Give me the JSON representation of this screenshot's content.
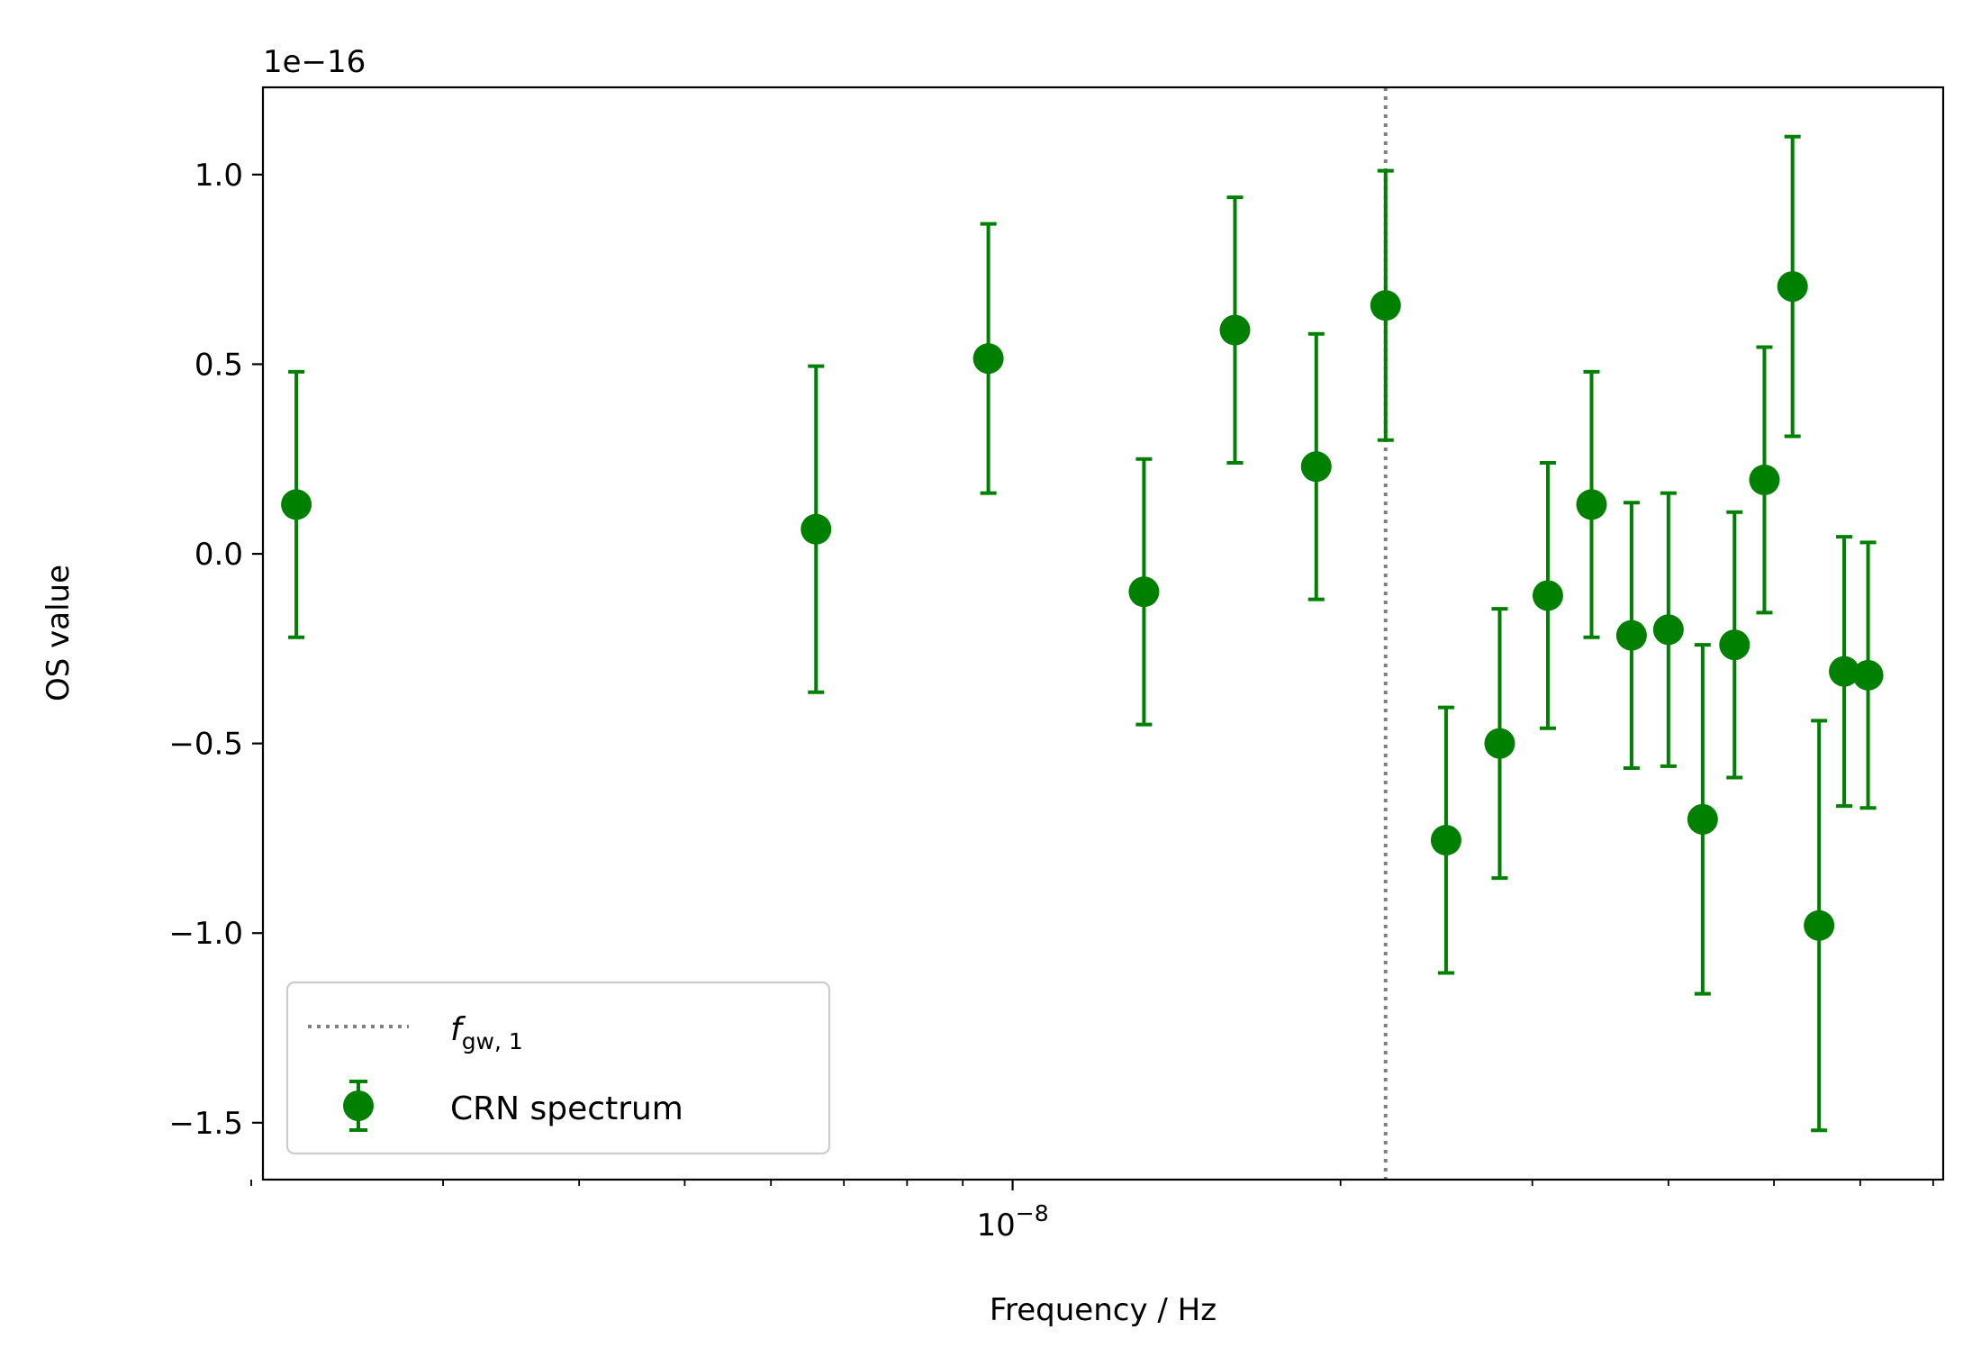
{
  "chart_data": {
    "type": "scatter",
    "title": "",
    "xlabel": "Frequency / Hz",
    "ylabel": "OS value",
    "x_scale": "log",
    "xlim": [
      2.05e-09,
      7.15e-08
    ],
    "ylim": [
      -1.65,
      1.23
    ],
    "y_multiplier_label": "1e−16",
    "y_ticks": [
      -1.5,
      -1.0,
      -0.5,
      0.0,
      0.5,
      1.0
    ],
    "y_tick_labels": [
      "−1.5",
      "−1.0",
      "−0.5",
      "0.0",
      "0.5",
      "1.0"
    ],
    "x_major_ticks": [
      1e-08
    ],
    "x_major_tick_labels": [
      {
        "base": "10",
        "exp": "−8"
      }
    ],
    "x_minor_ticks": [
      2e-09,
      3e-09,
      4e-09,
      5e-09,
      6e-09,
      7e-09,
      8e-09,
      9e-09,
      2e-08,
      3e-08,
      4e-08,
      5e-08,
      6e-08,
      7e-08
    ],
    "grid": false,
    "legend_position": "lower-left",
    "vline": {
      "x": 2.2e-08,
      "label_base": "f",
      "label_sub": "gw, 1",
      "color": "#808080",
      "style": "dotted"
    },
    "series": [
      {
        "name": "CRN spectrum",
        "color": "#008000",
        "points": [
          {
            "x": 2.2e-09,
            "y": 0.13,
            "err": 0.35
          },
          {
            "x": 6.6e-09,
            "y": 0.065,
            "err": 0.43
          },
          {
            "x": 9.5e-09,
            "y": 0.515,
            "err": 0.355
          },
          {
            "x": 1.32e-08,
            "y": -0.1,
            "err": 0.35
          },
          {
            "x": 1.6e-08,
            "y": 0.59,
            "err": 0.35
          },
          {
            "x": 1.9e-08,
            "y": 0.23,
            "err": 0.35
          },
          {
            "x": 2.2e-08,
            "y": 0.655,
            "err": 0.355
          },
          {
            "x": 2.5e-08,
            "y": -0.755,
            "err": 0.35
          },
          {
            "x": 2.8e-08,
            "y": -0.5,
            "err": 0.355
          },
          {
            "x": 3.1e-08,
            "y": -0.11,
            "err": 0.35
          },
          {
            "x": 3.4e-08,
            "y": 0.13,
            "err": 0.35
          },
          {
            "x": 3.7e-08,
            "y": -0.215,
            "err": 0.35
          },
          {
            "x": 4e-08,
            "y": -0.2,
            "err": 0.36
          },
          {
            "x": 4.3e-08,
            "y": -0.7,
            "err": 0.46
          },
          {
            "x": 4.6e-08,
            "y": -0.24,
            "err": 0.35
          },
          {
            "x": 4.9e-08,
            "y": 0.195,
            "err": 0.35
          },
          {
            "x": 5.2e-08,
            "y": 0.705,
            "err": 0.395
          },
          {
            "x": 5.5e-08,
            "y": -0.98,
            "err": 0.54
          },
          {
            "x": 5.8e-08,
            "y": -0.31,
            "err": 0.355
          },
          {
            "x": 6.1e-08,
            "y": -0.32,
            "err": 0.35
          }
        ]
      }
    ],
    "legend": [
      {
        "label_base": "f",
        "label_sub": "gw, 1",
        "kind": "vline"
      },
      {
        "label": "CRN spectrum",
        "kind": "errorbar"
      }
    ]
  }
}
